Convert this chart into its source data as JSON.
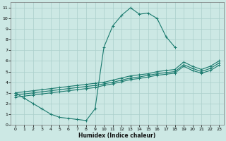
{
  "xlabel": "Humidex (Indice chaleur)",
  "bg_color": "#cce8e4",
  "grid_color": "#aacfcb",
  "line_color": "#1a7a6e",
  "xlim": [
    -0.5,
    23.5
  ],
  "ylim": [
    0,
    11.5
  ],
  "xticks": [
    0,
    1,
    2,
    3,
    4,
    5,
    6,
    7,
    8,
    9,
    10,
    11,
    12,
    13,
    14,
    15,
    16,
    17,
    18,
    19,
    20,
    21,
    22,
    23
  ],
  "yticks": [
    0,
    1,
    2,
    3,
    4,
    5,
    6,
    7,
    8,
    9,
    10,
    11
  ],
  "peak_x": [
    0,
    1,
    2,
    3,
    4,
    5,
    6,
    7,
    8,
    9,
    10,
    11,
    12,
    13,
    14,
    15,
    16,
    17,
    18
  ],
  "peak_y": [
    3.0,
    2.5,
    2.0,
    1.5,
    1.0,
    0.7,
    0.6,
    0.5,
    0.4,
    1.5,
    7.3,
    9.3,
    10.3,
    11.0,
    10.4,
    10.5,
    10.0,
    8.3,
    7.3
  ],
  "diag1_x": [
    0,
    1,
    2,
    3,
    4,
    5,
    6,
    7,
    8,
    9,
    10,
    11,
    12,
    13,
    14,
    15,
    16,
    17,
    18,
    19,
    20,
    21,
    22,
    23
  ],
  "diag1_y": [
    3.0,
    3.1,
    3.2,
    3.3,
    3.4,
    3.5,
    3.6,
    3.7,
    3.8,
    3.9,
    4.0,
    4.2,
    4.4,
    4.6,
    4.7,
    4.8,
    5.0,
    5.1,
    5.2,
    5.9,
    5.5,
    5.2,
    5.5,
    6.0
  ],
  "diag2_x": [
    0,
    1,
    2,
    3,
    4,
    5,
    6,
    7,
    8,
    9,
    10,
    11,
    12,
    13,
    14,
    15,
    16,
    17,
    18,
    19,
    20,
    21,
    22,
    23
  ],
  "diag2_y": [
    2.8,
    2.9,
    3.0,
    3.1,
    3.2,
    3.3,
    3.4,
    3.5,
    3.6,
    3.7,
    3.85,
    4.0,
    4.2,
    4.4,
    4.5,
    4.65,
    4.8,
    4.9,
    5.0,
    5.65,
    5.3,
    5.0,
    5.3,
    5.8
  ],
  "diag3_x": [
    0,
    1,
    2,
    3,
    4,
    5,
    6,
    7,
    8,
    9,
    10,
    11,
    12,
    13,
    14,
    15,
    16,
    17,
    18,
    19,
    20,
    21,
    22,
    23
  ],
  "diag3_y": [
    2.6,
    2.7,
    2.8,
    2.9,
    3.0,
    3.1,
    3.2,
    3.3,
    3.4,
    3.5,
    3.7,
    3.85,
    4.05,
    4.25,
    4.35,
    4.5,
    4.65,
    4.75,
    4.85,
    5.5,
    5.1,
    4.85,
    5.1,
    5.6
  ]
}
